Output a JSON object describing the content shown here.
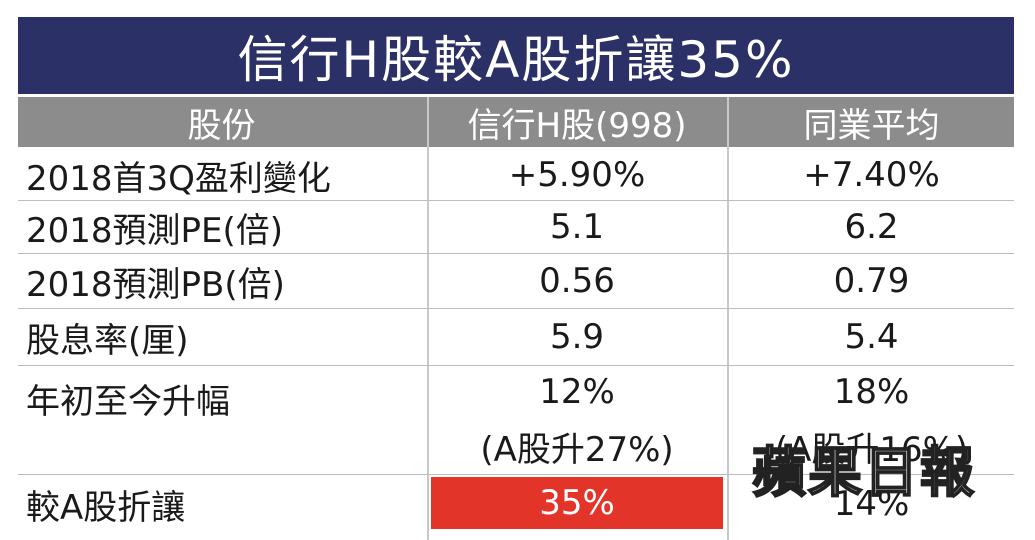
{
  "title": "信行H股較A股折讓35%",
  "columns": [
    "股份",
    "信行H股(998)",
    "同業平均"
  ],
  "rows": [
    {
      "label": "2018首3Q盈利變化",
      "h": "+5.90%",
      "peer": "+7.40%"
    },
    {
      "label": "2018預測PE(倍)",
      "h": "5.1",
      "peer": "6.2"
    },
    {
      "label": "2018預測PB(倍)",
      "h": "0.56",
      "peer": "0.79"
    },
    {
      "label": "股息率(厘)",
      "h": "5.9",
      "peer": "5.4"
    },
    {
      "label": "年初至今升幅",
      "h": "12%",
      "h_sub": "(A股升27%)",
      "peer": "18%",
      "peer_sub": "(A股升16%)"
    },
    {
      "label": "較A股折讓",
      "h": "35%",
      "peer": "14%"
    }
  ],
  "watermark": "蘋果日報",
  "colors": {
    "title_bg": "#2b3166",
    "header_bg": "#8c8c8c",
    "highlight": "#e3342a"
  }
}
